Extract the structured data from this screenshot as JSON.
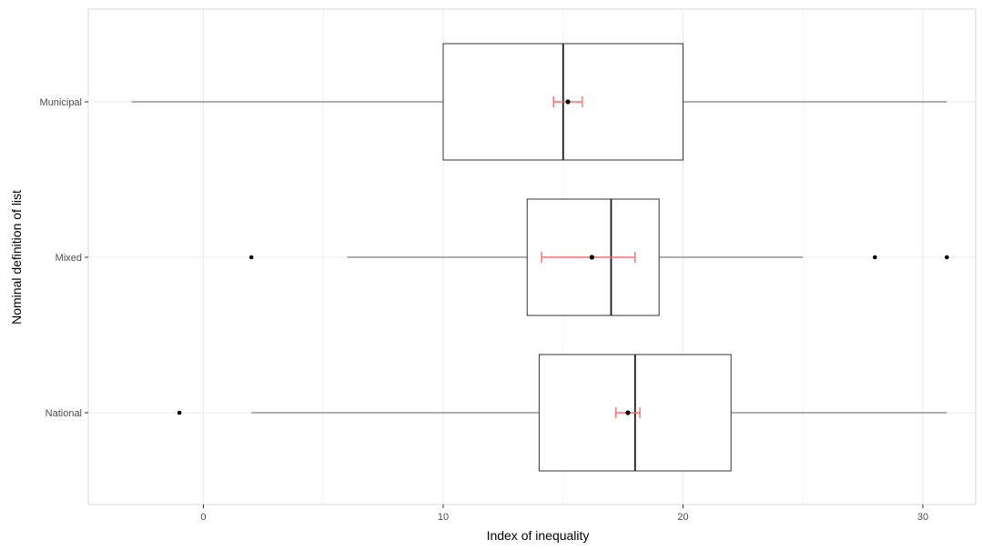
{
  "chart_data": {
    "type": "boxplot",
    "orientation": "horizontal",
    "xlabel": "Index of inequality",
    "ylabel": "Nominal definition of list",
    "xlim": [
      -4.8,
      32.2
    ],
    "x_ticks": [
      0,
      10,
      20,
      30
    ],
    "x_tick_labels": [
      "0",
      "10",
      "20",
      "30"
    ],
    "categories": [
      "Municipal",
      "Mixed",
      "National"
    ],
    "grid": true,
    "legend": "none",
    "boxes": [
      {
        "category": "Municipal",
        "whisker_low": -3,
        "q1": 10,
        "median": 15,
        "q3": 20,
        "whisker_high": 31,
        "outliers": [],
        "mean": 15.2,
        "ci": [
          14.6,
          15.8
        ]
      },
      {
        "category": "Mixed",
        "whisker_low": 6,
        "q1": 13.5,
        "median": 17,
        "q3": 19,
        "whisker_high": 25,
        "outliers": [
          2,
          28,
          31
        ],
        "mean": 16.2,
        "ci": [
          14.1,
          18.0
        ]
      },
      {
        "category": "National",
        "whisker_low": 2,
        "q1": 14,
        "median": 18,
        "q3": 22,
        "whisker_high": 31,
        "outliers": [
          -1
        ],
        "mean": 17.7,
        "ci": [
          17.2,
          18.2
        ]
      }
    ],
    "colors": {
      "box_stroke": "#333333",
      "whisker": "#7f7f7f",
      "median": "#1a1a1a",
      "mean_point": "#000000",
      "ci": "#ff6b6b",
      "grid": "#ebebeb",
      "panel_border": "#d9d9d9",
      "tick": "#333333"
    }
  }
}
